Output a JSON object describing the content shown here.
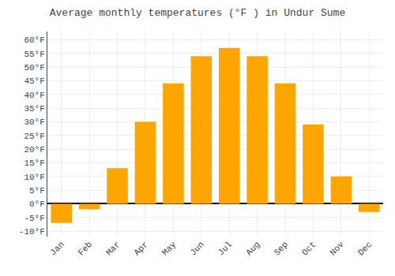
{
  "chart_data": {
    "type": "bar",
    "title": "Average monthly temperatures (°F ) in Undur Sume",
    "categories": [
      "Jan",
      "Feb",
      "Mar",
      "Apr",
      "May",
      "Jun",
      "Jul",
      "Aug",
      "Sep",
      "Oct",
      "Nov",
      "Dec"
    ],
    "values": [
      -7,
      -2,
      13,
      30,
      44,
      54,
      57,
      54,
      44,
      29,
      10,
      -3
    ],
    "color": "#FFA500",
    "ylim": [
      -12,
      63
    ],
    "yticks": [
      {
        "value": -10,
        "label": "-10°F"
      },
      {
        "value": -5,
        "label": "-5°F"
      },
      {
        "value": 0,
        "label": "0°F"
      },
      {
        "value": 5,
        "label": "5°F"
      },
      {
        "value": 10,
        "label": "10°F"
      },
      {
        "value": 15,
        "label": "15°F"
      },
      {
        "value": 20,
        "label": "20°F"
      },
      {
        "value": 25,
        "label": "25°F"
      },
      {
        "value": 30,
        "label": "30°F"
      },
      {
        "value": 35,
        "label": "35°F"
      },
      {
        "value": 40,
        "label": "40°F"
      },
      {
        "value": 45,
        "label": "45°F"
      },
      {
        "value": 50,
        "label": "50°F"
      },
      {
        "value": 55,
        "label": "55°F"
      },
      {
        "value": 60,
        "label": "60°F"
      }
    ],
    "grid": true
  }
}
